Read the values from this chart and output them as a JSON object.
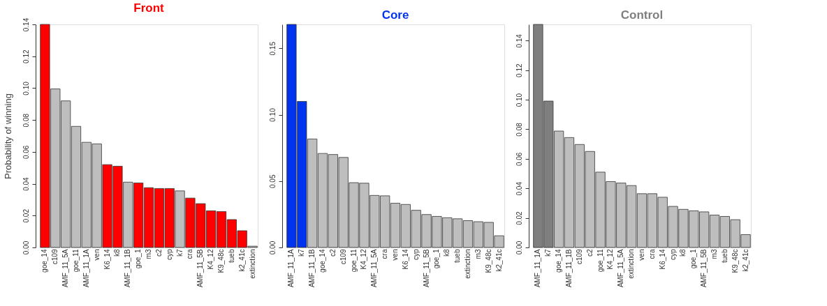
{
  "chart_data": [
    {
      "type": "bar",
      "title": "Front",
      "ylabel": "Probability of winning",
      "ylim": [
        0,
        0.14
      ],
      "yticks": [
        {
          "value": 0,
          "label": "0.00"
        },
        {
          "value": 0.02,
          "label": "0.02"
        },
        {
          "value": 0.04,
          "label": "0.04"
        },
        {
          "value": 0.06,
          "label": "0.06"
        },
        {
          "value": 0.08,
          "label": "0.08"
        },
        {
          "value": 0.1,
          "label": "0.10"
        },
        {
          "value": 0.12,
          "label": "0.12"
        },
        {
          "value": 0.14,
          "label": "0.14"
        }
      ],
      "categories": [
        "goe_14",
        "c109",
        "AMF_11_5A",
        "goe_11",
        "AMF_11_1A",
        "ven",
        "K6_14",
        "k8",
        "AMF_11_1B",
        "goe_1",
        "m3",
        "c2",
        "cyp",
        "k7",
        "cra",
        "AMF_11_5B",
        "K4_12",
        "K9_48c",
        "tueb",
        "k2_41c",
        "extinction"
      ],
      "values": [
        0.14,
        0.0995,
        0.092,
        0.076,
        0.066,
        0.065,
        0.052,
        0.051,
        0.041,
        0.0405,
        0.0375,
        0.037,
        0.037,
        0.0355,
        0.031,
        0.0275,
        0.023,
        0.0225,
        0.0175,
        0.0105,
        0.0008
      ],
      "colors": [
        "#ff0000",
        "#bebebe",
        "#bebebe",
        "#bebebe",
        "#bebebe",
        "#bebebe",
        "#ff0000",
        "#ff0000",
        "#bebebe",
        "#ff0000",
        "#ff0000",
        "#ff0000",
        "#ff0000",
        "#bebebe",
        "#ff0000",
        "#ff0000",
        "#ff0000",
        "#ff0000",
        "#ff0000",
        "#ff0000",
        "#bebebe"
      ]
    },
    {
      "type": "bar",
      "title": "Core",
      "ylim": [
        0,
        0.168
      ],
      "yticks": [
        {
          "value": 0,
          "label": "0.00"
        },
        {
          "value": 0.05,
          "label": "0.05"
        },
        {
          "value": 0.1,
          "label": "0.10"
        },
        {
          "value": 0.15,
          "label": "0.15"
        }
      ],
      "categories": [
        "AMF_11_1A",
        "k7",
        "AMF_11_1B",
        "goe_14",
        "c2",
        "c109",
        "goe_11",
        "K4_12",
        "AMF_11_5A",
        "cra",
        "ven",
        "K6_14",
        "cyp",
        "AMF_11_5B",
        "goe_1",
        "k8",
        "tueb",
        "extinction",
        "m3",
        "K9_48c",
        "k2_41c"
      ],
      "values": [
        0.168,
        0.11,
        0.0817,
        0.0708,
        0.07,
        0.0678,
        0.0488,
        0.0484,
        0.0392,
        0.0389,
        0.0333,
        0.0324,
        0.028,
        0.0248,
        0.0234,
        0.0224,
        0.0216,
        0.0202,
        0.0194,
        0.0189,
        0.0088
      ],
      "colors": [
        "#0033ee",
        "#0033ee",
        "#bebebe",
        "#bebebe",
        "#bebebe",
        "#bebebe",
        "#bebebe",
        "#bebebe",
        "#bebebe",
        "#bebebe",
        "#bebebe",
        "#bebebe",
        "#bebebe",
        "#bebebe",
        "#bebebe",
        "#bebebe",
        "#bebebe",
        "#bebebe",
        "#bebebe",
        "#bebebe",
        "#bebebe"
      ]
    },
    {
      "type": "bar",
      "title": "Control",
      "ylim": [
        0,
        0.151
      ],
      "yticks": [
        {
          "value": 0,
          "label": "0.00"
        },
        {
          "value": 0.02,
          "label": "0.02"
        },
        {
          "value": 0.04,
          "label": "0.04"
        },
        {
          "value": 0.06,
          "label": "0.06"
        },
        {
          "value": 0.08,
          "label": "0.08"
        },
        {
          "value": 0.1,
          "label": "0.10"
        },
        {
          "value": 0.12,
          "label": "0.12"
        },
        {
          "value": 0.14,
          "label": "0.14"
        }
      ],
      "categories": [
        "AMF_11_1A",
        "k7",
        "goe_14",
        "AMF_11_1B",
        "c109",
        "c2",
        "goe_11",
        "K4_12",
        "AMF_11_5A",
        "extinction",
        "ven",
        "cra",
        "K6_14",
        "cyp",
        "k8",
        "goe_1",
        "AMF_11_5B",
        "m3",
        "tueb",
        "K9_48c",
        "k2_41c"
      ],
      "values": [
        0.151,
        0.0991,
        0.0788,
        0.0744,
        0.0697,
        0.065,
        0.051,
        0.0446,
        0.0436,
        0.0419,
        0.0364,
        0.0364,
        0.034,
        0.0278,
        0.0258,
        0.0248,
        0.0241,
        0.0219,
        0.021,
        0.0188,
        0.0087
      ],
      "colors": [
        "#7f7f7f",
        "#7f7f7f",
        "#bebebe",
        "#bebebe",
        "#bebebe",
        "#bebebe",
        "#bebebe",
        "#bebebe",
        "#bebebe",
        "#bebebe",
        "#bebebe",
        "#bebebe",
        "#bebebe",
        "#bebebe",
        "#bebebe",
        "#bebebe",
        "#bebebe",
        "#bebebe",
        "#bebebe",
        "#bebebe",
        "#bebebe"
      ]
    }
  ]
}
